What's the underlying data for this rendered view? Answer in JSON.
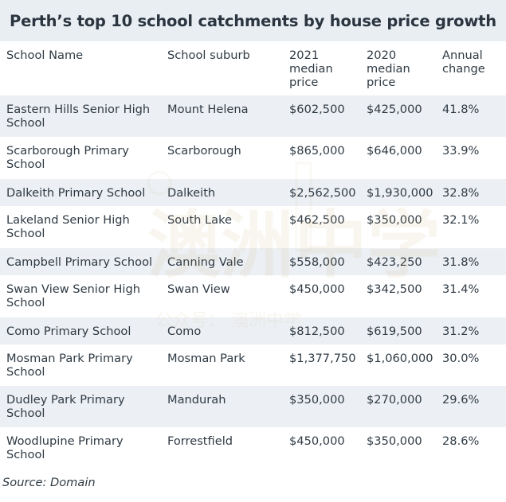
{
  "title": "Perth’s top 10 school catchments by house price growth",
  "headers": {
    "school_name": "School Name",
    "school_suburb": "School suburb",
    "price_2021": "2021\nmedian\nprice",
    "price_2020": "2020\nmedian\nprice",
    "annual_change": "Annual\nchange"
  },
  "rows": [
    {
      "name": "Eastern Hills Senior High School",
      "suburb": "Mount Helena",
      "p2021": "$602,500",
      "p2020": "$425,000",
      "change": "41.8%"
    },
    {
      "name": "Scarborough Primary School",
      "suburb": "Scarborough",
      "p2021": "$865,000",
      "p2020": "$646,000",
      "change": "33.9%"
    },
    {
      "name": "Dalkeith Primary School",
      "suburb": "Dalkeith",
      "p2021": "$2,562,500",
      "p2020": "$1,930,000",
      "change": "32.8%"
    },
    {
      "name": "Lakeland Senior High School",
      "suburb": "South Lake",
      "p2021": "$462,500",
      "p2020": "$350,000",
      "change": "32.1%"
    },
    {
      "name": "Campbell Primary School",
      "suburb": "Canning Vale",
      "p2021": "$558,000",
      "p2020": "$423,250",
      "change": "31.8%"
    },
    {
      "name": "Swan View Senior High School",
      "suburb": "Swan View",
      "p2021": "$450,000",
      "p2020": "$342,500",
      "change": "31.4%"
    },
    {
      "name": "Como Primary School",
      "suburb": "Como",
      "p2021": "$812,500",
      "p2020": "$619,500",
      "change": "31.2%"
    },
    {
      "name": "Mosman Park Primary School",
      "suburb": "Mosman Park",
      "p2021": "$1,377,750",
      "p2020": "$1,060,000",
      "change": "30.0%"
    },
    {
      "name": "Dudley Park Primary School",
      "suburb": "Mandurah",
      "p2021": "$350,000",
      "p2020": "$270,000",
      "change": "29.6%"
    },
    {
      "name": "Woodlupine Primary School",
      "suburb": "Forrestfield",
      "p2021": "$450,000",
      "p2020": "$350,000",
      "change": "28.6%"
    }
  ],
  "source": "Source: Domain",
  "watermark": {
    "big": "澳洲中学",
    "small": "公众号： 澳洲中学"
  },
  "colors": {
    "title_bg": "#e9eef3",
    "row_shade": "#eceff3",
    "text": "#2f3a44"
  }
}
